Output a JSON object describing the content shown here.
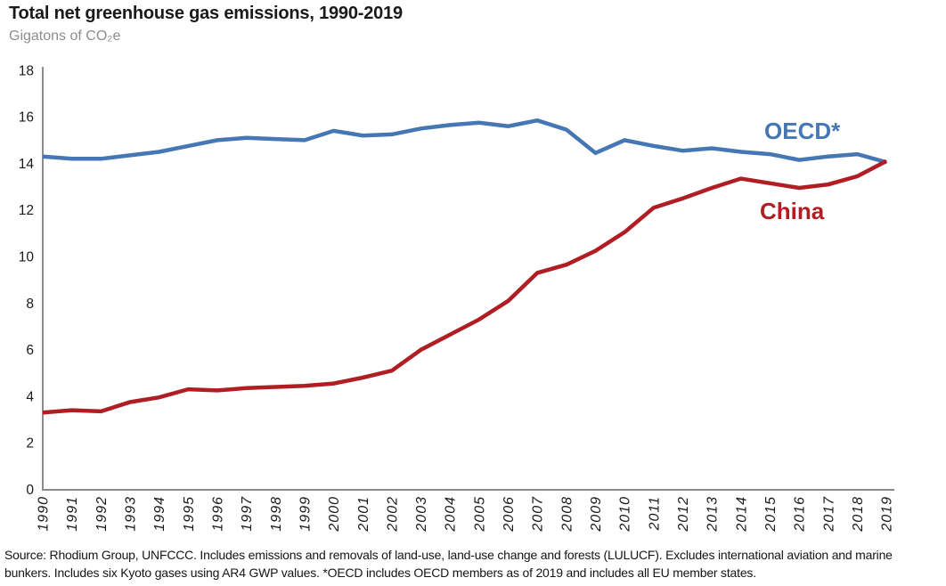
{
  "header": {
    "title": "Total net greenhouse gas emissions, 1990-2019",
    "subtitle": "Gigatons of CO₂e"
  },
  "chart_data": {
    "type": "line",
    "title": "Total net greenhouse gas emissions, 1990-2019",
    "subtitle": "Gigatons of CO₂e",
    "x": [
      1990,
      1991,
      1992,
      1993,
      1994,
      1995,
      1996,
      1997,
      1998,
      1999,
      2000,
      2001,
      2002,
      2003,
      2004,
      2005,
      2006,
      2007,
      2008,
      2009,
      2010,
      2011,
      2012,
      2013,
      2014,
      2015,
      2016,
      2017,
      2018,
      2019
    ],
    "series": [
      {
        "name": "OECD*",
        "color": "#4577b5",
        "values": [
          14.3,
          14.2,
          14.2,
          14.35,
          14.5,
          14.75,
          15.0,
          15.1,
          15.05,
          15.0,
          15.4,
          15.2,
          15.25,
          15.5,
          15.65,
          15.75,
          15.6,
          15.85,
          15.45,
          14.45,
          15.0,
          14.75,
          14.55,
          14.65,
          14.5,
          14.4,
          14.15,
          14.3,
          14.4,
          14.05
        ]
      },
      {
        "name": "China",
        "color": "#b01e24",
        "values": [
          3.3,
          3.4,
          3.35,
          3.75,
          3.95,
          4.3,
          4.25,
          4.35,
          4.4,
          4.45,
          4.55,
          4.8,
          5.1,
          6.0,
          6.65,
          7.3,
          8.1,
          9.3,
          9.65,
          10.25,
          11.05,
          12.1,
          12.5,
          12.95,
          13.35,
          13.15,
          12.95,
          13.1,
          13.45,
          14.1
        ]
      }
    ],
    "xlabel": "",
    "ylabel": "Gigatons of CO₂e",
    "ylim": [
      0,
      18
    ],
    "yticks": [
      0,
      2,
      4,
      6,
      8,
      10,
      12,
      14,
      16,
      18
    ],
    "grid": false,
    "legend": "inline-series-labels",
    "x_tick_rotation": -90,
    "axis_color": "#8c8c8c",
    "tick_color": "#1a1a1a"
  },
  "footer": {
    "source_note": "Source: Rhodium Group, UNFCCC. Includes emissions and removals of land-use, land-use change and forests (LULUCF). Excludes international aviation and marine bunkers. Includes six Kyoto gases using AR4 GWP values. *OECD includes OECD members as of 2019 and includes all EU member states."
  }
}
